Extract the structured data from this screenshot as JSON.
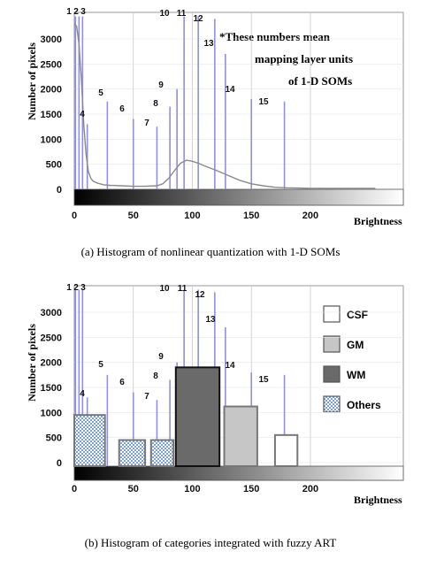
{
  "chart_data": [
    {
      "type": "line",
      "caption": "(a) Histogram of nonlinear quantization with 1-D SOMs",
      "xlabel": "Brightness",
      "ylabel": "Number of pixels",
      "xlim": [
        0,
        255
      ],
      "ylim": [
        0,
        3300
      ],
      "xticks": [
        0,
        50,
        100,
        150,
        200
      ],
      "yticks": [
        0,
        500,
        1000,
        1500,
        2000,
        2500,
        3000
      ],
      "annotation": [
        "*These numbers mean",
        "mapping  layer units",
        "of 1-D SOMs"
      ],
      "curve": {
        "x": [
          0,
          2,
          4,
          6,
          8,
          10,
          12,
          14,
          16,
          20,
          25,
          30,
          40,
          50,
          60,
          70,
          75,
          80,
          85,
          90,
          95,
          100,
          105,
          110,
          120,
          130,
          140,
          150,
          160,
          170,
          180,
          190,
          200,
          220,
          240,
          255
        ],
        "y": [
          3300,
          3250,
          2900,
          2200,
          1300,
          700,
          350,
          220,
          160,
          120,
          90,
          80,
          70,
          60,
          60,
          70,
          110,
          220,
          380,
          520,
          580,
          560,
          520,
          470,
          380,
          280,
          180,
          110,
          70,
          40,
          30,
          25,
          20,
          20,
          20,
          20
        ]
      },
      "units": {
        "labels": [
          "1",
          "2",
          "3",
          "4",
          "5",
          "6",
          "7",
          "8",
          "9",
          "10",
          "11",
          "12",
          "13",
          "14",
          "15"
        ],
        "x": [
          1,
          4,
          7,
          11,
          28,
          50,
          70,
          81,
          87,
          93,
          105,
          119,
          128,
          150,
          178
        ],
        "height": [
          3450,
          3450,
          3450,
          1300,
          1750,
          1400,
          1250,
          1650,
          2000,
          3450,
          3450,
          3400,
          2700,
          1800,
          1750
        ]
      }
    },
    {
      "type": "bar",
      "caption": "(b) Histogram of categories integrated with fuzzy ART",
      "xlabel": "Brightness",
      "ylabel": "Number of pixels",
      "xlim": [
        0,
        255
      ],
      "ylim": [
        0,
        3300
      ],
      "xticks": [
        0,
        50,
        100,
        150,
        200
      ],
      "yticks": [
        0,
        500,
        1000,
        1500,
        2000,
        2500,
        3000
      ],
      "units": {
        "labels": [
          "1",
          "2",
          "3",
          "4",
          "5",
          "6",
          "7",
          "8",
          "9",
          "10",
          "11",
          "12",
          "13",
          "14",
          "15"
        ],
        "x": [
          1,
          4,
          7,
          11,
          28,
          50,
          70,
          81,
          87,
          93,
          105,
          119,
          128,
          150,
          178
        ],
        "height": [
          3450,
          3450,
          3450,
          1300,
          1750,
          1400,
          1250,
          1650,
          2000,
          3450,
          3450,
          3400,
          2700,
          1800,
          1750
        ]
      },
      "bars": [
        {
          "x0": 0,
          "x1": 26,
          "value": 950,
          "category": "Others"
        },
        {
          "x0": 38,
          "x1": 60,
          "value": 450,
          "category": "Others"
        },
        {
          "x0": 65,
          "x1": 84,
          "value": 450,
          "category": "Others"
        },
        {
          "x0": 86,
          "x1": 123,
          "value": 1900,
          "category": "WM"
        },
        {
          "x0": 127,
          "x1": 155,
          "value": 1120,
          "category": "GM"
        },
        {
          "x0": 170,
          "x1": 189,
          "value": 550,
          "category": "CSF"
        }
      ],
      "legend": {
        "placement": "right",
        "items": [
          {
            "name": "CSF",
            "color": "#ffffff"
          },
          {
            "name": "GM",
            "color": "#c6c6c6"
          },
          {
            "name": "WM",
            "color": "#6a6a6a"
          },
          {
            "name": "Others",
            "color": "#a9c4e6"
          }
        ]
      }
    }
  ],
  "colors": {
    "unit_line": "#8f8fe6",
    "curve": "#8a8a8a",
    "grid": "#c8c8c8",
    "others_pattern": "#7aa2d6"
  }
}
